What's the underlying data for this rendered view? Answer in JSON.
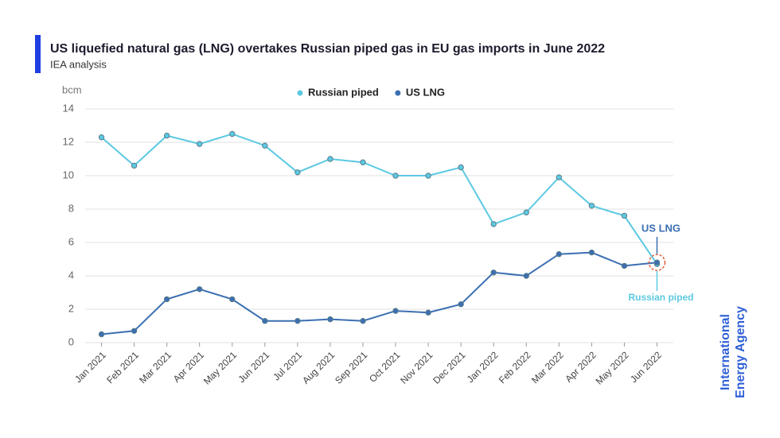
{
  "chart_data": {
    "type": "line",
    "title": "US liquefied natural gas (LNG) overtakes Russian piped gas in EU gas imports in June 2022",
    "subtitle": "IEA analysis",
    "y_label": "bcm",
    "categories": [
      "Jan 2021",
      "Feb 2021",
      "Mar 2021",
      "Apr 2021",
      "May 2021",
      "Jun 2021",
      "Jul 2021",
      "Aug 2021",
      "Sep 2021",
      "Oct 2021",
      "Nov 2021",
      "Dec 2021",
      "Jan 2022",
      "Feb 2022",
      "Mar 2022",
      "Apr 2022",
      "May 2022",
      "Jun 2022"
    ],
    "series": [
      {
        "name": "Russian piped",
        "color": "#5cc9e2",
        "values": [
          12.3,
          10.6,
          12.4,
          11.9,
          12.5,
          11.8,
          10.2,
          11.0,
          10.8,
          10.0,
          10.0,
          10.5,
          7.1,
          7.8,
          9.9,
          8.2,
          7.6,
          4.7
        ]
      },
      {
        "name": "US LNG",
        "color": "#3b6fb2",
        "values": [
          0.5,
          0.7,
          2.6,
          3.2,
          2.6,
          1.3,
          1.3,
          1.4,
          1.3,
          1.9,
          1.8,
          2.3,
          4.2,
          4.0,
          5.3,
          5.4,
          4.6,
          4.8
        ]
      }
    ],
    "ylim": [
      0,
      14
    ],
    "yticks": [
      0,
      2,
      4,
      6,
      8,
      10,
      12,
      14
    ],
    "grid": true,
    "annotations": [
      "US LNG",
      "Russian piped"
    ],
    "logo": [
      "International",
      "Energy Agency"
    ]
  }
}
